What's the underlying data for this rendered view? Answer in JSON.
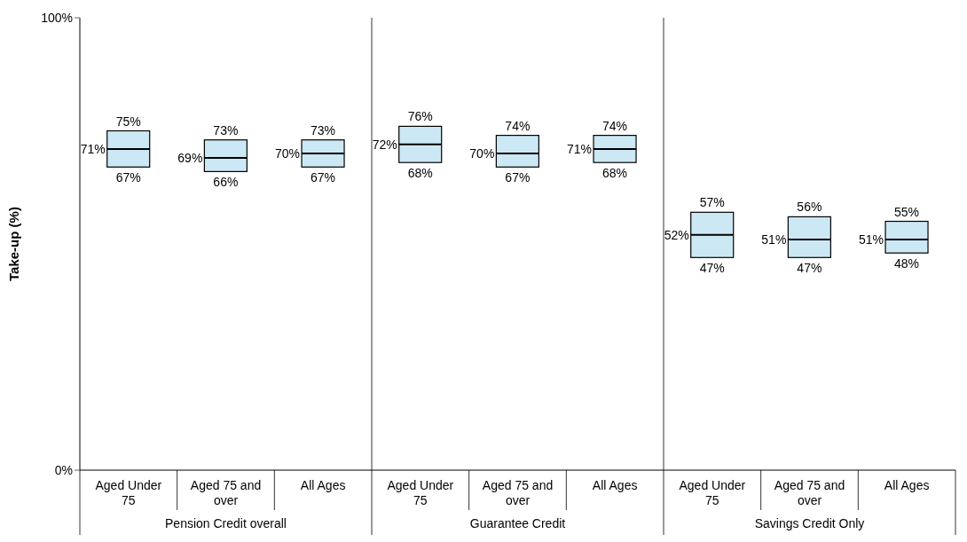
{
  "chart_data": {
    "type": "box",
    "ylabel": "Take-up (%)",
    "categories": [
      "Aged Under 75",
      "Aged 75 and over",
      "All Ages",
      "Aged Under 75",
      "Aged 75 and over",
      "All Ages",
      "Aged Under 75",
      "Aged 75 and over",
      "All Ages"
    ],
    "annotations": [
      "Pension Credit overall",
      "Guarantee Credit",
      "Savings Credit Only"
    ],
    "color": "#cce8f4",
    "boxes": [
      {
        "low": 67,
        "q1": 67,
        "median": 71,
        "q3": 75,
        "high": 75
      },
      {
        "low": 66,
        "q1": 66,
        "median": 69,
        "q3": 73,
        "high": 73
      },
      {
        "low": 67,
        "q1": 67,
        "median": 70,
        "q3": 73,
        "high": 73
      },
      {
        "low": 68,
        "q1": 68,
        "median": 72,
        "q3": 76,
        "high": 76
      },
      {
        "low": 67,
        "q1": 67,
        "median": 70,
        "q3": 74,
        "high": 74
      },
      {
        "low": 68,
        "q1": 68,
        "median": 71,
        "q3": 74,
        "high": 74
      },
      {
        "low": 47,
        "q1": 47,
        "median": 52,
        "q3": 57,
        "high": 57
      },
      {
        "low": 47,
        "q1": 47,
        "median": 51,
        "q3": 56,
        "high": 56
      },
      {
        "low": 48,
        "q1": 48,
        "median": 51,
        "q3": 55,
        "high": 55
      }
    ],
    "value_labels": [
      [
        "67%",
        "71%",
        "75%"
      ],
      [
        "66%",
        "69%",
        "73%"
      ],
      [
        "67%",
        "70%",
        "73%"
      ],
      [
        "68%",
        "72%",
        "76%"
      ],
      [
        "67%",
        "70%",
        "74%"
      ],
      [
        "68%",
        "71%",
        "74%"
      ],
      [
        "47%",
        "52%",
        "57%"
      ],
      [
        "47%",
        "51%",
        "56%"
      ],
      [
        "48%",
        "51%",
        "55%"
      ]
    ],
    "ylim": [
      0,
      100
    ],
    "yticks": [
      {
        "value": 0,
        "label": "0%"
      },
      {
        "value": 100,
        "label": "100%"
      }
    ],
    "grid": false,
    "legend": false
  }
}
